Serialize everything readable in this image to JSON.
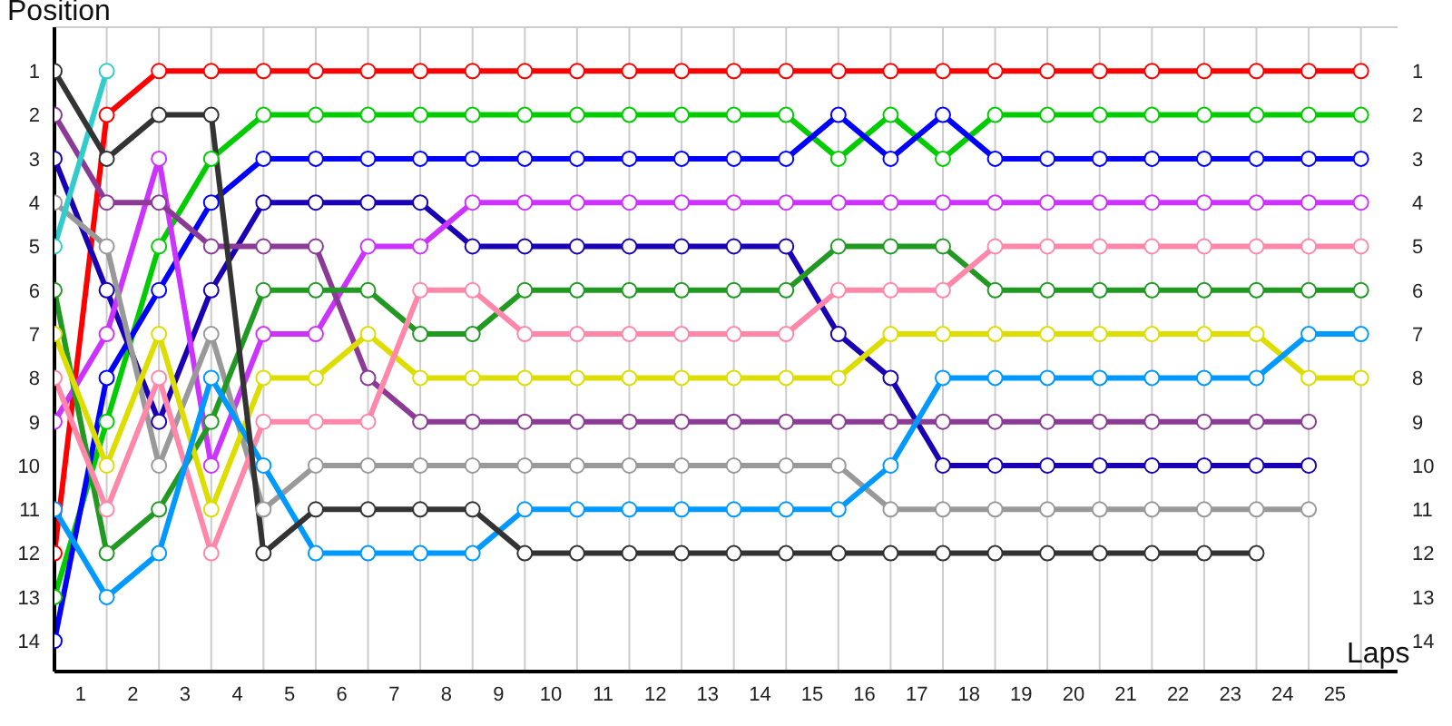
{
  "chart_data": {
    "type": "line",
    "xlabel": "Laps",
    "ylabel": "Position",
    "x": [
      0,
      1,
      2,
      3,
      4,
      5,
      6,
      7,
      8,
      9,
      10,
      11,
      12,
      13,
      14,
      15,
      16,
      17,
      18,
      19,
      20,
      21,
      22,
      23,
      24,
      25
    ],
    "xlim": [
      0,
      25.7
    ],
    "xticks": [
      {
        "value": 0,
        "label": null
      },
      {
        "value": 0.5,
        "label": "1"
      },
      {
        "value": 1,
        "label": null
      },
      {
        "value": 1.5,
        "label": "2"
      },
      {
        "value": 2,
        "label": null
      },
      {
        "value": 2.5,
        "label": "3"
      },
      {
        "value": 3,
        "label": null
      },
      {
        "value": 3.5,
        "label": "4"
      },
      {
        "value": 4,
        "label": null
      },
      {
        "value": 4.5,
        "label": "5"
      },
      {
        "value": 5,
        "label": null
      },
      {
        "value": 5.5,
        "label": "6"
      },
      {
        "value": 6,
        "label": null
      },
      {
        "value": 6.5,
        "label": "7"
      },
      {
        "value": 7,
        "label": null
      },
      {
        "value": 7.5,
        "label": "8"
      },
      {
        "value": 8,
        "label": null
      },
      {
        "value": 8.5,
        "label": "9"
      },
      {
        "value": 9,
        "label": null
      },
      {
        "value": 9.5,
        "label": "10"
      },
      {
        "value": 10,
        "label": null
      },
      {
        "value": 10.5,
        "label": "11"
      },
      {
        "value": 11,
        "label": null
      },
      {
        "value": 11.5,
        "label": "12"
      },
      {
        "value": 12,
        "label": null
      },
      {
        "value": 12.5,
        "label": "13"
      },
      {
        "value": 13,
        "label": null
      },
      {
        "value": 13.5,
        "label": "14"
      },
      {
        "value": 14,
        "label": null
      },
      {
        "value": 14.5,
        "label": "15"
      },
      {
        "value": 15,
        "label": null
      },
      {
        "value": 15.5,
        "label": "16"
      },
      {
        "value": 16,
        "label": null
      },
      {
        "value": 16.5,
        "label": "17"
      },
      {
        "value": 17,
        "label": null
      },
      {
        "value": 17.5,
        "label": "18"
      },
      {
        "value": 18,
        "label": null
      },
      {
        "value": 18.5,
        "label": "19"
      },
      {
        "value": 19,
        "label": null
      },
      {
        "value": 19.5,
        "label": "20"
      },
      {
        "value": 20,
        "label": null
      },
      {
        "value": 20.5,
        "label": "21"
      },
      {
        "value": 21,
        "label": null
      },
      {
        "value": 21.5,
        "label": "22"
      },
      {
        "value": 22,
        "label": null
      },
      {
        "value": 22.5,
        "label": "23"
      },
      {
        "value": 23,
        "label": null
      },
      {
        "value": 23.5,
        "label": "24"
      },
      {
        "value": 24,
        "label": null
      },
      {
        "value": 24.5,
        "label": "25"
      },
      {
        "value": 25,
        "label": null
      }
    ],
    "ylim": [
      14.7,
      0
    ],
    "yticks": [
      1,
      2,
      3,
      4,
      5,
      6,
      7,
      8,
      9,
      10,
      11,
      12,
      13,
      14
    ],
    "y2lim": [
      14.7,
      0
    ],
    "y2ticks": [
      1,
      2,
      3,
      4,
      5,
      6,
      7,
      8,
      9,
      10,
      11,
      12,
      13,
      14
    ],
    "grid": true,
    "marker": "circle",
    "line_style": "solid",
    "series": [
      {
        "color": "#ff0000",
        "values": [
          12,
          2,
          1,
          1,
          1,
          1,
          1,
          1,
          1,
          1,
          1,
          1,
          1,
          1,
          1,
          1,
          1,
          1,
          1,
          1,
          1,
          1,
          1,
          1,
          1,
          1
        ]
      },
      {
        "color": "#00cc00",
        "values": [
          13,
          9,
          5,
          3,
          2,
          2,
          2,
          2,
          2,
          2,
          2,
          2,
          2,
          2,
          2,
          3,
          2,
          3,
          2,
          2,
          2,
          2,
          2,
          2,
          2,
          2
        ]
      },
      {
        "color": "#0000ff",
        "values": [
          14,
          8,
          6,
          4,
          3,
          3,
          3,
          3,
          3,
          3,
          3,
          3,
          3,
          3,
          3,
          2,
          3,
          2,
          3,
          3,
          3,
          3,
          3,
          3,
          3,
          3
        ]
      },
      {
        "color": "#1a00b4",
        "values": [
          3,
          6,
          9,
          6,
          4,
          4,
          4,
          4,
          5,
          5,
          5,
          5,
          5,
          5,
          5,
          7,
          8,
          10,
          10,
          10,
          10,
          10,
          10,
          10,
          10,
          null
        ]
      },
      {
        "color": "#cc33ff",
        "values": [
          9,
          7,
          3,
          10,
          7,
          7,
          5,
          5,
          4,
          4,
          4,
          4,
          4,
          4,
          4,
          4,
          4,
          4,
          4,
          4,
          4,
          4,
          4,
          4,
          4,
          4
        ]
      },
      {
        "color": "#8b3a96",
        "values": [
          2,
          4,
          4,
          5,
          5,
          5,
          8,
          9,
          9,
          9,
          9,
          9,
          9,
          9,
          9,
          9,
          9,
          9,
          9,
          9,
          9,
          9,
          9,
          9,
          9,
          null
        ]
      },
      {
        "color": "#999999",
        "values": [
          4,
          5,
          10,
          7,
          11,
          10,
          10,
          10,
          10,
          10,
          10,
          10,
          10,
          10,
          10,
          10,
          11,
          11,
          11,
          11,
          11,
          11,
          11,
          11,
          11,
          null
        ]
      },
      {
        "color": "#33cccc",
        "values": [
          5,
          1,
          null,
          null,
          null,
          null,
          null,
          null,
          null,
          null,
          null,
          null,
          null,
          null,
          null,
          null,
          null,
          null,
          null,
          null,
          null,
          null,
          null,
          null,
          null,
          null
        ]
      },
      {
        "color": "#229922",
        "values": [
          6,
          12,
          11,
          9,
          6,
          6,
          6,
          7,
          7,
          6,
          6,
          6,
          6,
          6,
          6,
          5,
          5,
          5,
          6,
          6,
          6,
          6,
          6,
          6,
          6,
          6
        ]
      },
      {
        "color": "#dddd00",
        "values": [
          7,
          10,
          7,
          11,
          8,
          8,
          7,
          8,
          8,
          8,
          8,
          8,
          8,
          8,
          8,
          8,
          7,
          7,
          7,
          7,
          7,
          7,
          7,
          7,
          8,
          8
        ]
      },
      {
        "color": "#ff88aa",
        "values": [
          8,
          11,
          8,
          12,
          9,
          9,
          9,
          6,
          6,
          7,
          7,
          7,
          7,
          7,
          7,
          6,
          6,
          6,
          5,
          5,
          5,
          5,
          5,
          5,
          5,
          5
        ]
      },
      {
        "color": "#0099ff",
        "values": [
          11,
          13,
          12,
          8,
          10,
          12,
          12,
          12,
          12,
          11,
          11,
          11,
          11,
          11,
          11,
          11,
          10,
          8,
          8,
          8,
          8,
          8,
          8,
          8,
          7,
          7
        ]
      },
      {
        "color": "#333333",
        "values": [
          1,
          3,
          2,
          2,
          12,
          11,
          11,
          11,
          11,
          12,
          12,
          12,
          12,
          12,
          12,
          12,
          12,
          12,
          12,
          12,
          12,
          12,
          12,
          12,
          null,
          null
        ]
      }
    ]
  }
}
